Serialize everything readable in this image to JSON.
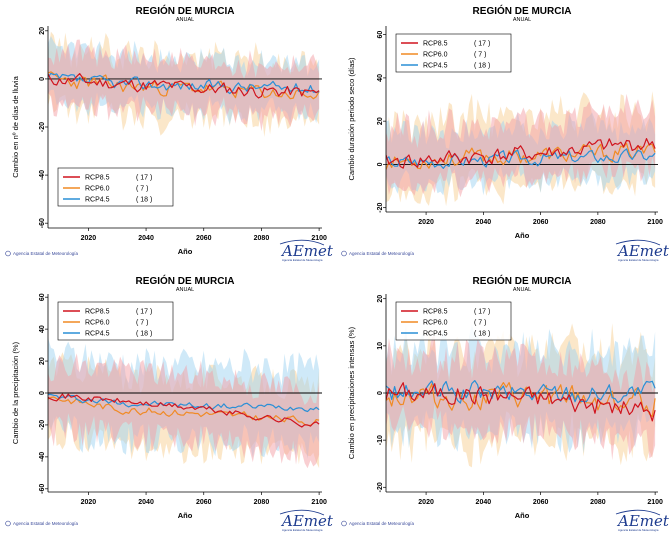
{
  "colors": {
    "rcp85": "#d0141e",
    "rcp60": "#f08a24",
    "rcp45": "#2a8fd6",
    "band85": "#f4a0a6",
    "band60": "#f8cf94",
    "band45": "#9fd3f2",
    "axis": "#000000"
  },
  "footer": {
    "agency": "Agencia Estatal de Meteorología",
    "logo_text": "AEmet",
    "logo_sub": "Agencia Estatal de Meteorología",
    "logo_icon": "aemet-logo-icon"
  },
  "chart_data": [
    {
      "type": "line",
      "title": "REGIÓN DE MURCIA",
      "subtitle": "ANUAL",
      "xlabel": "Año",
      "ylabel": "Cambio en nº de días de lluvia",
      "xlim": [
        2006,
        2101
      ],
      "ylim": [
        -62,
        22
      ],
      "xticks": [
        2020,
        2040,
        2060,
        2080,
        2100
      ],
      "yticks": [
        20,
        0,
        -20,
        -40,
        -60
      ],
      "zero_line": true,
      "legend": {
        "position": "bottom-left",
        "entries": [
          {
            "name": "RCP8.5",
            "count": "( 17 )"
          },
          {
            "name": "RCP6.0",
            "count": "(  7 )"
          },
          {
            "name": "RCP4.5",
            "count": "( 18 )"
          }
        ]
      },
      "series": [
        {
          "name": "RCP8.5",
          "anchors": [
            [
              2006,
              0
            ],
            [
              2030,
              -2
            ],
            [
              2060,
              -4
            ],
            [
              2100,
              -6
            ]
          ],
          "amplitude": 2.5,
          "band": [
            10,
            11
          ],
          "seed": 11
        },
        {
          "name": "RCP6.0",
          "anchors": [
            [
              2006,
              0
            ],
            [
              2030,
              -3
            ],
            [
              2060,
              -4
            ],
            [
              2100,
              -7
            ]
          ],
          "amplitude": 2.8,
          "band": [
            12,
            13
          ],
          "seed": 23
        },
        {
          "name": "RCP4.5",
          "anchors": [
            [
              2006,
              0
            ],
            [
              2030,
              -2
            ],
            [
              2060,
              -3
            ],
            [
              2100,
              -4
            ]
          ],
          "amplitude": 2.2,
          "band": [
            10,
            11
          ],
          "seed": 37
        }
      ]
    },
    {
      "type": "line",
      "title": "REGIÓN DE MURCIA",
      "subtitle": "ANUAL",
      "xlabel": "Año",
      "ylabel": "Cambio duración periodo seco (días)",
      "xlim": [
        2006,
        2101
      ],
      "ylim": [
        -22,
        64
      ],
      "xticks": [
        2020,
        2040,
        2060,
        2080,
        2100
      ],
      "yticks": [
        60,
        40,
        20,
        0,
        -20
      ],
      "zero_line": true,
      "legend": {
        "position": "top-left",
        "entries": [
          {
            "name": "RCP8.5",
            "count": "( 17 )"
          },
          {
            "name": "RCP6.0",
            "count": "(  7 )"
          },
          {
            "name": "RCP4.5",
            "count": "( 18 )"
          }
        ]
      },
      "series": [
        {
          "name": "RCP8.5",
          "anchors": [
            [
              2006,
              1
            ],
            [
              2030,
              3
            ],
            [
              2060,
              5
            ],
            [
              2100,
              10
            ]
          ],
          "amplitude": 3.5,
          "band": [
            11,
            15
          ],
          "seed": 41
        },
        {
          "name": "RCP6.0",
          "anchors": [
            [
              2006,
              1
            ],
            [
              2030,
              3
            ],
            [
              2060,
              4
            ],
            [
              2100,
              6
            ]
          ],
          "amplitude": 3.5,
          "band": [
            13,
            18
          ],
          "seed": 53
        },
        {
          "name": "RCP4.5",
          "anchors": [
            [
              2006,
              1
            ],
            [
              2030,
              2
            ],
            [
              2060,
              3
            ],
            [
              2100,
              4
            ]
          ],
          "amplitude": 2.8,
          "band": [
            10,
            13
          ],
          "seed": 67
        }
      ]
    },
    {
      "type": "line",
      "title": "REGIÓN DE MURCIA",
      "subtitle": "ANUAL",
      "xlabel": "Año",
      "ylabel": "Cambio de la precipitación (%)",
      "xlim": [
        2006,
        2101
      ],
      "ylim": [
        -62,
        62
      ],
      "xticks": [
        2020,
        2040,
        2060,
        2080,
        2100
      ],
      "yticks": [
        60,
        40,
        20,
        0,
        -20,
        -40,
        -60
      ],
      "zero_line": true,
      "legend": {
        "position": "top-left",
        "entries": [
          {
            "name": "RCP8.5",
            "count": "( 17 )"
          },
          {
            "name": "RCP6.0",
            "count": "(  7 )"
          },
          {
            "name": "RCP4.5",
            "count": "( 18 )"
          }
        ]
      },
      "series": [
        {
          "name": "RCP8.5",
          "anchors": [
            [
              2006,
              -1
            ],
            [
              2030,
              -5
            ],
            [
              2060,
              -10
            ],
            [
              2100,
              -20
            ]
          ],
          "amplitude": 2.0,
          "band": [
            20,
            20
          ],
          "seed": 71
        },
        {
          "name": "RCP6.0",
          "anchors": [
            [
              2006,
              -2
            ],
            [
              2030,
              -10
            ],
            [
              2060,
              -13
            ],
            [
              2100,
              -18
            ]
          ],
          "amplitude": 2.2,
          "band": [
            22,
            22
          ],
          "seed": 83
        },
        {
          "name": "RCP4.5",
          "anchors": [
            [
              2006,
              -2
            ],
            [
              2030,
              -6
            ],
            [
              2060,
              -8
            ],
            [
              2100,
              -9
            ]
          ],
          "amplitude": 1.8,
          "band": [
            22,
            25
          ],
          "seed": 97
        }
      ]
    },
    {
      "type": "line",
      "title": "REGIÓN DE MURCIA",
      "subtitle": "ANUAL",
      "xlabel": "Año",
      "ylabel": "Cambio en precipitaciones intensas (%)",
      "xlim": [
        2006,
        2101
      ],
      "ylim": [
        -21,
        21
      ],
      "xticks": [
        2020,
        2040,
        2060,
        2080,
        2100
      ],
      "yticks": [
        20,
        10,
        0,
        -10,
        -20
      ],
      "zero_line": true,
      "legend": {
        "position": "top-left",
        "entries": [
          {
            "name": "RCP8.5",
            "count": "( 17 )"
          },
          {
            "name": "RCP6.0",
            "count": "(  7 )"
          },
          {
            "name": "RCP4.5",
            "count": "( 18 )"
          }
        ]
      },
      "series": [
        {
          "name": "RCP8.5",
          "anchors": [
            [
              2006,
              0
            ],
            [
              2030,
              0
            ],
            [
              2060,
              -1
            ],
            [
              2100,
              -4
            ]
          ],
          "amplitude": 2.0,
          "band": [
            7,
            8
          ],
          "seed": 101
        },
        {
          "name": "RCP6.0",
          "anchors": [
            [
              2006,
              0
            ],
            [
              2030,
              -1
            ],
            [
              2060,
              -1
            ],
            [
              2100,
              -2
            ]
          ],
          "amplitude": 2.4,
          "band": [
            9,
            10
          ],
          "seed": 113
        },
        {
          "name": "RCP4.5",
          "anchors": [
            [
              2006,
              0
            ],
            [
              2030,
              0
            ],
            [
              2060,
              0
            ],
            [
              2100,
              0
            ]
          ],
          "amplitude": 2.0,
          "band": [
            8,
            9
          ],
          "seed": 127
        }
      ]
    }
  ]
}
